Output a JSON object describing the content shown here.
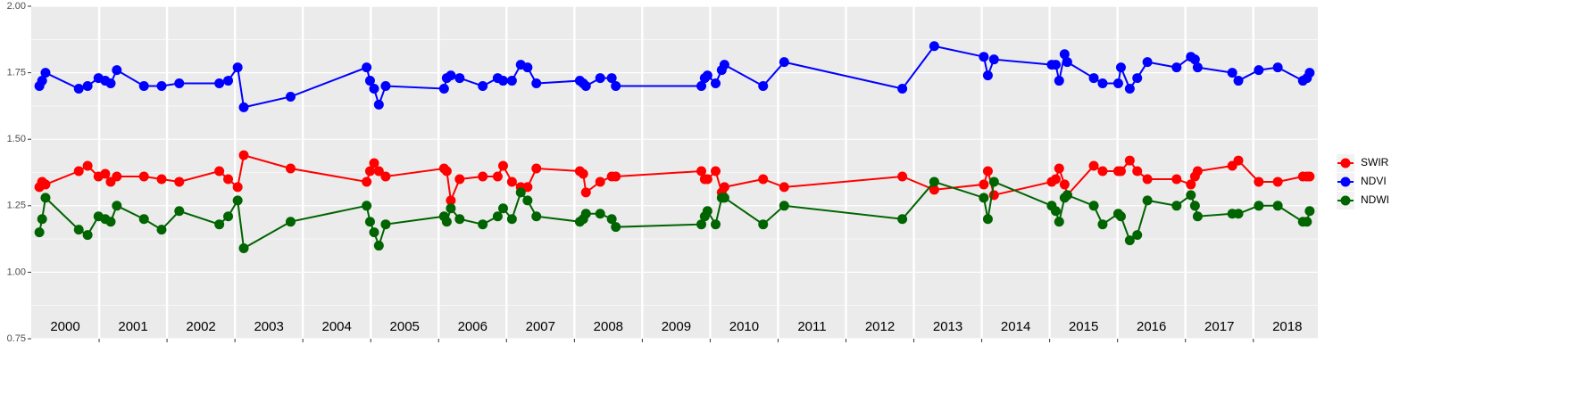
{
  "chart_data": {
    "type": "line",
    "x": [
      2000.12,
      2000.16,
      2000.21,
      2000.7,
      2000.83,
      2000.99,
      2001.09,
      2001.17,
      2001.26,
      2001.66,
      2001.92,
      2002.18,
      2002.77,
      2002.9,
      2003.04,
      2003.13,
      2003.82,
      2004.94,
      2004.99,
      2005.05,
      2005.12,
      2005.22,
      2006.08,
      2006.12,
      2006.18,
      2006.31,
      2006.65,
      2006.87,
      2006.95,
      2007.08,
      2007.21,
      2007.31,
      2007.44,
      2008.08,
      2008.13,
      2008.17,
      2008.38,
      2008.55,
      2008.61,
      2009.87,
      2009.92,
      2009.96,
      2010.08,
      2010.17,
      2010.21,
      2010.78,
      2011.09,
      2012.83,
      2013.3,
      2014.03,
      2014.09,
      2014.18,
      2015.03,
      2015.09,
      2015.14,
      2015.22,
      2015.26,
      2015.65,
      2015.78,
      2016.01,
      2016.05,
      2016.18,
      2016.29,
      2016.44,
      2016.87,
      2017.08,
      2017.14,
      2017.18,
      2017.69,
      2017.78,
      2018.08,
      2018.36,
      2018.73,
      2018.79,
      2018.83
    ],
    "series": [
      {
        "name": "SWIR",
        "color": "#ff0000",
        "values": [
          1.32,
          1.34,
          1.33,
          1.38,
          1.4,
          1.36,
          1.37,
          1.34,
          1.36,
          1.36,
          1.35,
          1.34,
          1.38,
          1.35,
          1.32,
          1.44,
          1.39,
          1.34,
          1.38,
          1.41,
          1.38,
          1.36,
          1.39,
          1.38,
          1.27,
          1.35,
          1.36,
          1.36,
          1.4,
          1.34,
          1.32,
          1.32,
          1.39,
          1.38,
          1.37,
          1.3,
          1.34,
          1.36,
          1.36,
          1.38,
          1.35,
          1.35,
          1.38,
          1.3,
          1.32,
          1.35,
          1.32,
          1.36,
          1.31,
          1.33,
          1.38,
          1.29,
          1.34,
          1.35,
          1.39,
          1.33,
          1.29,
          1.4,
          1.38,
          1.38,
          1.38,
          1.42,
          1.38,
          1.35,
          1.35,
          1.33,
          1.36,
          1.38,
          1.4,
          1.42,
          1.34,
          1.34,
          1.36,
          1.36,
          1.36
        ]
      },
      {
        "name": "NDVI",
        "color": "#0000ff",
        "values": [
          1.7,
          1.72,
          1.75,
          1.69,
          1.7,
          1.73,
          1.72,
          1.71,
          1.76,
          1.7,
          1.7,
          1.71,
          1.71,
          1.72,
          1.77,
          1.62,
          1.66,
          1.77,
          1.72,
          1.69,
          1.63,
          1.7,
          1.69,
          1.73,
          1.74,
          1.73,
          1.7,
          1.73,
          1.72,
          1.72,
          1.78,
          1.77,
          1.71,
          1.72,
          1.71,
          1.7,
          1.73,
          1.73,
          1.7,
          1.7,
          1.73,
          1.74,
          1.71,
          1.76,
          1.78,
          1.7,
          1.79,
          1.69,
          1.85,
          1.81,
          1.74,
          1.8,
          1.78,
          1.78,
          1.72,
          1.82,
          1.79,
          1.73,
          1.71,
          1.71,
          1.77,
          1.69,
          1.73,
          1.79,
          1.77,
          1.81,
          1.8,
          1.77,
          1.75,
          1.72,
          1.76,
          1.77,
          1.72,
          1.73,
          1.75
        ]
      },
      {
        "name": "NDWI",
        "color": "#006400",
        "values": [
          1.15,
          1.2,
          1.28,
          1.16,
          1.14,
          1.21,
          1.2,
          1.19,
          1.25,
          1.2,
          1.16,
          1.23,
          1.18,
          1.21,
          1.27,
          1.09,
          1.19,
          1.25,
          1.19,
          1.15,
          1.1,
          1.18,
          1.21,
          1.19,
          1.24,
          1.2,
          1.18,
          1.21,
          1.24,
          1.2,
          1.3,
          1.27,
          1.21,
          1.19,
          1.2,
          1.22,
          1.22,
          1.2,
          1.17,
          1.18,
          1.21,
          1.23,
          1.18,
          1.28,
          1.28,
          1.18,
          1.25,
          1.2,
          1.34,
          1.28,
          1.2,
          1.34,
          1.25,
          1.23,
          1.19,
          1.28,
          1.29,
          1.25,
          1.18,
          1.22,
          1.21,
          1.12,
          1.14,
          1.27,
          1.25,
          1.29,
          1.25,
          1.21,
          1.22,
          1.22,
          1.25,
          1.25,
          1.19,
          1.19,
          1.23
        ]
      }
    ],
    "xlim": [
      2000,
      2018.95
    ],
    "xticks": [
      2001,
      2002,
      2003,
      2004,
      2005,
      2006,
      2007,
      2008,
      2009,
      2010,
      2011,
      2012,
      2013,
      2014,
      2015,
      2016,
      2017,
      2018
    ],
    "year_labels": [
      2000,
      2001,
      2002,
      2003,
      2004,
      2005,
      2006,
      2007,
      2008,
      2009,
      2010,
      2011,
      2012,
      2013,
      2014,
      2015,
      2016,
      2017,
      2018
    ],
    "ylim": [
      0.75,
      2.0
    ],
    "yticks": [
      {
        "value": 0.75,
        "label": "0.75"
      },
      {
        "value": 1.0,
        "label": "1.00"
      },
      {
        "value": 1.25,
        "label": "1.25"
      },
      {
        "value": 1.5,
        "label": "1.50"
      },
      {
        "value": 1.75,
        "label": "1.75"
      },
      {
        "value": 2.0,
        "label": "2.00"
      }
    ],
    "yminor": [
      0.875,
      1.125,
      1.375,
      1.625,
      1.875
    ],
    "grid": true,
    "legend": "right"
  }
}
